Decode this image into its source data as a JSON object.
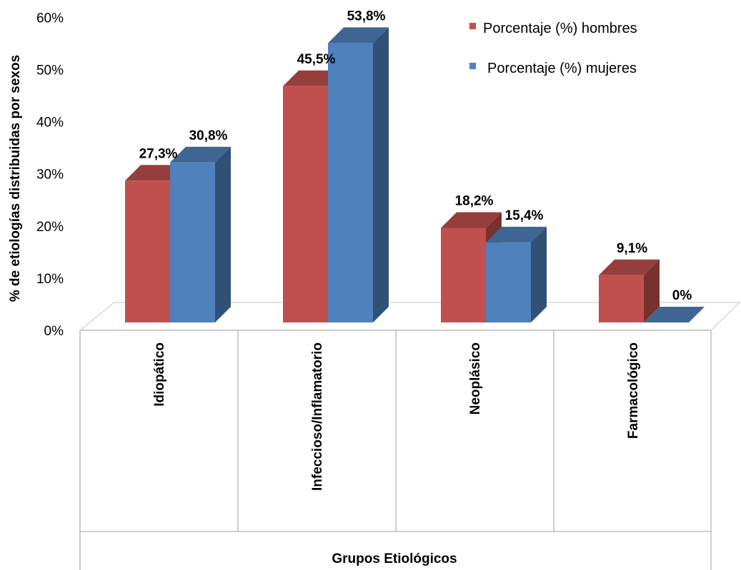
{
  "chart_data": {
    "type": "bar",
    "style": "3d-clustered-column",
    "categories": [
      "Idiopático",
      "Infeccioso/Inflamatorio",
      "Neoplásico",
      "Farmacológico"
    ],
    "series": [
      {
        "name": "Porcentaje (%) hombres",
        "values": [
          27.3,
          45.5,
          18.2,
          9.1
        ],
        "labels": [
          "27,3%",
          "45,5%",
          "18,2%",
          "9,1%"
        ],
        "color": "#C0504D"
      },
      {
        "name": "Porcentaje (%) mujeres",
        "values": [
          30.8,
          53.8,
          15.4,
          0
        ],
        "labels": [
          "30,8%",
          "53,8%",
          "15,4%",
          "0%"
        ],
        "color": "#4F81BD"
      }
    ],
    "ylabel": "% de etiologías distribuidas por sexos",
    "xlabel": "Grupos Etiológicos",
    "ylim": [
      0,
      60
    ],
    "yticks": [
      "0%",
      "10%",
      "20%",
      "30%",
      "40%",
      "50%",
      "60%"
    ],
    "legend_position": "top-right",
    "grid": false
  }
}
